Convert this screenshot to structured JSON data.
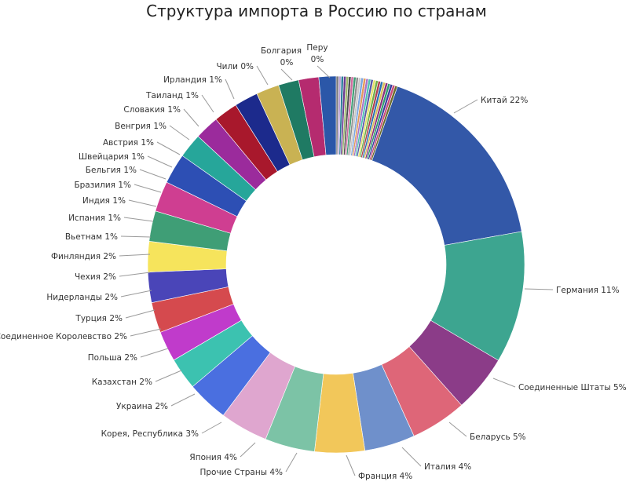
{
  "chart_data": {
    "type": "pie",
    "title": "Структура импорта в Россию по странам",
    "donut": true,
    "slices": [
      {
        "label": "Китай",
        "value": 22,
        "display": "22%",
        "color": "#3358A8"
      },
      {
        "label": "Германия",
        "value": 11,
        "display": "11%",
        "color": "#3DA590"
      },
      {
        "label": "Соединенные Штаты",
        "value": 5,
        "display": "5%",
        "color": "#8B3C88"
      },
      {
        "label": "Беларусь",
        "value": 5,
        "display": "5%",
        "color": "#DE6678"
      },
      {
        "label": "Италия",
        "value": 4,
        "display": "4%",
        "color": "#6F90CB"
      },
      {
        "label": "Франция",
        "value": 4,
        "display": "4%",
        "color": "#F2C75A"
      },
      {
        "label": "Прочие Страны",
        "value": 4,
        "display": "4%",
        "color": "#7CC3A6"
      },
      {
        "label": "Япония",
        "value": 4,
        "display": "4%",
        "color": "#DFA6CF"
      },
      {
        "label": "Корея, Республика",
        "value": 3,
        "display": "3%",
        "color": "#4A6FE0"
      },
      {
        "label": "Украина",
        "value": 2,
        "display": "2%",
        "color": "#3CC2B0"
      },
      {
        "label": "Казахстан",
        "value": 2,
        "display": "2%",
        "color": "#C03BCB"
      },
      {
        "label": "Польша",
        "value": 2,
        "display": "2%",
        "color": "#D54A4E"
      },
      {
        "label": "Соединенное Королевство",
        "value": 2,
        "display": "2%",
        "color": "#4A45B8"
      },
      {
        "label": "Турция",
        "value": 2,
        "display": "2%",
        "color": "#F6E45C"
      },
      {
        "label": "Нидерланды",
        "value": 2,
        "display": "2%",
        "color": "#3F9E76"
      },
      {
        "label": "Чехия",
        "value": 2,
        "display": "2%",
        "color": "#CF3E91"
      },
      {
        "label": "Финляндия",
        "value": 2,
        "display": "2%",
        "color": "#2D4FB4"
      },
      {
        "label": "Вьетнам",
        "value": 1,
        "display": "1%",
        "color": "#26A69A"
      },
      {
        "label": "Испания",
        "value": 1,
        "display": "1%",
        "color": "#9B2B9C"
      },
      {
        "label": "Индия",
        "value": 1,
        "display": "1%",
        "color": "#A8182C"
      },
      {
        "label": "Бразилия",
        "value": 1,
        "display": "1%",
        "color": "#1C2A8C"
      },
      {
        "label": "Бельгия",
        "value": 1,
        "display": "1%",
        "color": "#C9B253"
      },
      {
        "label": "Швейцария",
        "value": 1,
        "display": "1%",
        "color": "#1F7A63"
      },
      {
        "label": "Австрия",
        "value": 1,
        "display": "1%",
        "color": "#B52B6F"
      },
      {
        "label": "Венгрия",
        "value": 1,
        "display": "1%",
        "color": "#2B57A8"
      },
      {
        "label": "Словакия",
        "value": 1,
        "display": "1%",
        "color": "#118577"
      },
      {
        "label": "Таиланд",
        "value": 1,
        "display": "1%",
        "color": "#5B1F66"
      },
      {
        "label": "Ирландия",
        "value": 1,
        "display": "1%",
        "color": "#141C5E"
      },
      {
        "label": "Чили",
        "value": 0,
        "display": "0%",
        "color": "#6B6B2A"
      },
      {
        "label": "Болгария",
        "value": 0,
        "display": "0%",
        "color": "#3F9E76"
      },
      {
        "label": "Перу",
        "value": 0,
        "display": "0%",
        "color": "#7A7A7A"
      }
    ]
  }
}
